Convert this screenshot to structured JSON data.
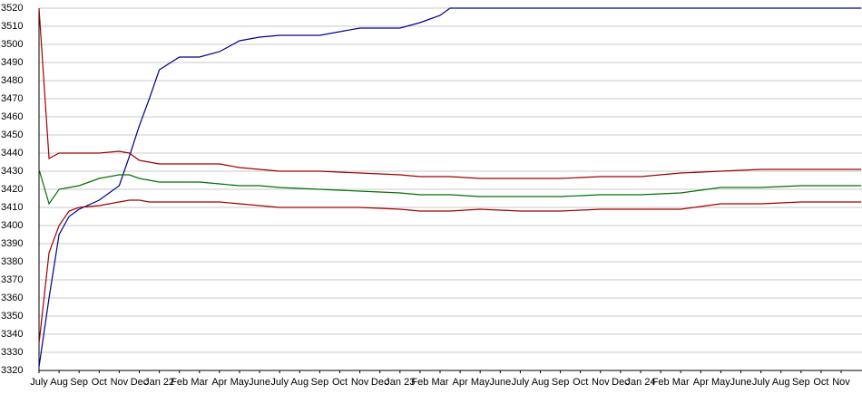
{
  "chart_data": {
    "type": "line",
    "x": [
      0,
      0.5,
      1,
      1.5,
      2,
      3,
      4,
      4.5,
      5,
      5.5,
      6,
      7,
      8,
      9,
      10,
      11,
      12,
      14,
      16,
      18,
      19,
      20,
      20.5,
      22,
      24,
      26,
      28,
      30,
      32,
      34,
      36,
      38,
      41
    ],
    "series": [
      {
        "color": "#00008b",
        "values": [
          3322,
          3360,
          3395,
          3405,
          3409,
          3414,
          3422,
          3438,
          3455,
          3470,
          3486,
          3493,
          3493,
          3496,
          3502,
          3504,
          3505,
          3505,
          3509,
          3509,
          3512,
          3516,
          3520,
          3520,
          3520,
          3520,
          3520,
          3520,
          3520,
          3520,
          3520,
          3520,
          3520
        ]
      },
      {
        "color": "#a00000",
        "values": [
          3520,
          3437,
          3440,
          3440,
          3440,
          3440,
          3441,
          3440,
          3436,
          3435,
          3434,
          3434,
          3434,
          3434,
          3432,
          3431,
          3430,
          3430,
          3429,
          3428,
          3427,
          3427,
          3427,
          3426,
          3426,
          3426,
          3427,
          3427,
          3429,
          3430,
          3431,
          3431,
          3431
        ]
      },
      {
        "color": "#007000",
        "values": [
          3431,
          3412,
          3420,
          3421,
          3422,
          3426,
          3428,
          3428,
          3426,
          3425,
          3424,
          3424,
          3424,
          3423,
          3422,
          3422,
          3421,
          3420,
          3419,
          3418,
          3417,
          3417,
          3417,
          3416,
          3416,
          3416,
          3417,
          3417,
          3418,
          3421,
          3421,
          3422,
          3422
        ]
      },
      {
        "color": "#a00000",
        "values": [
          3335,
          3385,
          3400,
          3408,
          3410,
          3411,
          3413,
          3414,
          3414,
          3413,
          3413,
          3413,
          3413,
          3413,
          3412,
          3411,
          3410,
          3410,
          3410,
          3409,
          3408,
          3408,
          3408,
          3409,
          3408,
          3408,
          3409,
          3409,
          3409,
          3412,
          3412,
          3413,
          3413
        ]
      }
    ],
    "xlim": [
      0,
      41.04
    ],
    "xticks": [
      {
        "value": 0,
        "label": "July"
      },
      {
        "value": 1,
        "label": "Aug"
      },
      {
        "value": 2,
        "label": "Sep"
      },
      {
        "value": 3,
        "label": "Oct"
      },
      {
        "value": 4,
        "label": "Nov"
      },
      {
        "value": 5,
        "label": "Dec"
      },
      {
        "value": 6,
        "label": "Jan 22"
      },
      {
        "value": 7,
        "label": "Feb"
      },
      {
        "value": 8,
        "label": "Mar"
      },
      {
        "value": 9,
        "label": "Apr"
      },
      {
        "value": 10,
        "label": "May"
      },
      {
        "value": 11,
        "label": "June"
      },
      {
        "value": 12,
        "label": "July"
      },
      {
        "value": 13,
        "label": "Aug"
      },
      {
        "value": 14,
        "label": "Sep"
      },
      {
        "value": 15,
        "label": "Oct"
      },
      {
        "value": 16,
        "label": "Nov"
      },
      {
        "value": 17,
        "label": "Dec"
      },
      {
        "value": 18,
        "label": "Jan 23"
      },
      {
        "value": 19,
        "label": "Feb"
      },
      {
        "value": 20,
        "label": "Mar"
      },
      {
        "value": 21,
        "label": "Apr"
      },
      {
        "value": 22,
        "label": "May"
      },
      {
        "value": 23,
        "label": "June"
      },
      {
        "value": 24,
        "label": "July"
      },
      {
        "value": 25,
        "label": "Aug"
      },
      {
        "value": 26,
        "label": "Sep"
      },
      {
        "value": 27,
        "label": "Oct"
      },
      {
        "value": 28,
        "label": "Nov"
      },
      {
        "value": 29,
        "label": "Dec"
      },
      {
        "value": 30,
        "label": "Jan 24"
      },
      {
        "value": 31,
        "label": "Feb"
      },
      {
        "value": 32,
        "label": "Mar"
      },
      {
        "value": 33,
        "label": "Apr"
      },
      {
        "value": 34,
        "label": "May"
      },
      {
        "value": 35,
        "label": "June"
      },
      {
        "value": 36,
        "label": "July"
      },
      {
        "value": 37,
        "label": "Aug"
      },
      {
        "value": 38,
        "label": "Sep"
      },
      {
        "value": 39,
        "label": "Oct"
      },
      {
        "value": 40,
        "label": "Nov"
      }
    ],
    "ylim": [
      3320,
      3520
    ],
    "yticks": [
      3320,
      3330,
      3340,
      3350,
      3360,
      3370,
      3380,
      3390,
      3400,
      3410,
      3420,
      3430,
      3440,
      3450,
      3460,
      3470,
      3480,
      3490,
      3500,
      3510,
      3520
    ],
    "grid": true
  }
}
